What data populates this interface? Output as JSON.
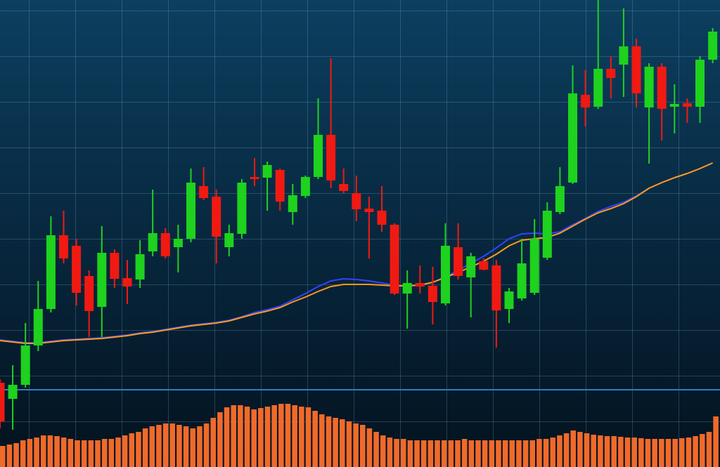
{
  "chart_data": {
    "type": "candlestick",
    "ylim": [
      0,
      665
    ],
    "up_color": "#1ed21e",
    "down_color": "#f01a12",
    "open": [
      120,
      97,
      117,
      173,
      225,
      330,
      315,
      272,
      228,
      305,
      269,
      267,
      307,
      333,
      313,
      325,
      400,
      385,
      313,
      332,
      413,
      412,
      423,
      363,
      386,
      413,
      473,
      403,
      390,
      368,
      365,
      345,
      247,
      262,
      258,
      233,
      313,
      270,
      293,
      287,
      225,
      240,
      248,
      298,
      363,
      405,
      530,
      513,
      567,
      573,
      599,
      512,
      570,
      513,
      518,
      513,
      580
    ],
    "close": [
      65,
      117,
      173,
      225,
      330,
      297,
      248,
      222,
      305,
      268,
      257,
      303,
      333,
      300,
      325,
      405,
      383,
      328,
      333,
      405,
      410,
      430,
      378,
      387,
      413,
      473,
      408,
      393,
      367,
      363,
      345,
      247,
      262,
      257,
      235,
      315,
      272,
      300,
      281,
      223,
      250,
      290,
      325,
      365,
      400,
      532,
      512,
      567,
      554,
      599,
      532,
      570,
      510,
      517,
      513,
      580,
      620
    ],
    "high": [
      125,
      145,
      205,
      265,
      357,
      365,
      325,
      280,
      343,
      310,
      295,
      323,
      395,
      340,
      345,
      425,
      427,
      395,
      345,
      410,
      440,
      435,
      425,
      403,
      415,
      525,
      582,
      425,
      415,
      385,
      400,
      347,
      280,
      287,
      285,
      347,
      347,
      305,
      297,
      295,
      255,
      325,
      353,
      377,
      427,
      572,
      565,
      665,
      585,
      653,
      610,
      575,
      575,
      545,
      525,
      585,
      625
    ],
    "low": [
      55,
      53,
      113,
      165,
      220,
      290,
      230,
      185,
      185,
      255,
      232,
      255,
      300,
      297,
      277,
      320,
      380,
      290,
      300,
      325,
      400,
      365,
      365,
      345,
      383,
      410,
      397,
      390,
      350,
      297,
      335,
      245,
      197,
      247,
      203,
      230,
      267,
      213,
      280,
      170,
      205,
      237,
      245,
      295,
      360,
      403,
      485,
      510,
      525,
      527,
      512,
      432,
      465,
      475,
      490,
      490,
      575
    ],
    "moving_averages": [
      {
        "color": "#3344ff",
        "values": [
          181,
          179,
          177,
          177,
          179,
          181,
          182,
          183,
          184,
          186,
          188,
          191,
          193,
          196,
          199,
          202,
          204,
          206,
          209,
          214,
          220,
          224,
          229,
          238,
          247,
          257,
          265,
          268,
          267,
          265,
          262,
          259,
          258,
          259,
          263,
          271,
          280,
          290,
          300,
          312,
          325,
          332,
          333,
          332,
          335,
          345,
          354,
          364,
          371,
          377,
          386,
          397,
          405,
          412,
          418,
          425,
          433
        ]
      },
      {
        "color": "#ff9a1a",
        "values": [
          180,
          178,
          176,
          176,
          178,
          180,
          181,
          182,
          183,
          185,
          187,
          190,
          192,
          195,
          198,
          201,
          203,
          205,
          208,
          213,
          218,
          222,
          227,
          235,
          242,
          250,
          257,
          260,
          260,
          260,
          259,
          258,
          258,
          259,
          263,
          270,
          277,
          285,
          293,
          303,
          315,
          323,
          325,
          327,
          333,
          343,
          353,
          362,
          368,
          375,
          385,
          397,
          405,
          412,
          418,
          425,
          433
        ]
      }
    ],
    "volume": {
      "color": "#f06a2a",
      "ylim": [
        0,
        100
      ],
      "values": [
        30,
        32,
        34,
        38,
        40,
        42,
        45,
        45,
        44,
        42,
        40,
        38,
        38,
        38,
        38,
        40,
        40,
        42,
        45,
        48,
        50,
        55,
        58,
        60,
        62,
        62,
        60,
        58,
        55,
        58,
        62,
        70,
        78,
        85,
        88,
        88,
        86,
        82,
        84,
        86,
        88,
        90,
        90,
        88,
        86,
        85,
        80,
        75,
        72,
        70,
        68,
        65,
        62,
        60,
        55,
        50,
        45,
        42,
        40,
        40,
        38,
        38,
        38,
        38,
        38,
        38,
        38,
        38,
        40,
        38,
        38,
        38,
        38,
        38,
        38,
        38,
        38,
        38,
        38,
        40,
        40,
        42,
        45,
        48,
        52,
        50,
        48,
        46,
        45,
        44,
        44,
        43,
        42,
        42,
        41,
        40,
        40,
        40,
        40,
        40,
        41,
        42,
        44,
        47,
        50,
        72
      ]
    }
  }
}
